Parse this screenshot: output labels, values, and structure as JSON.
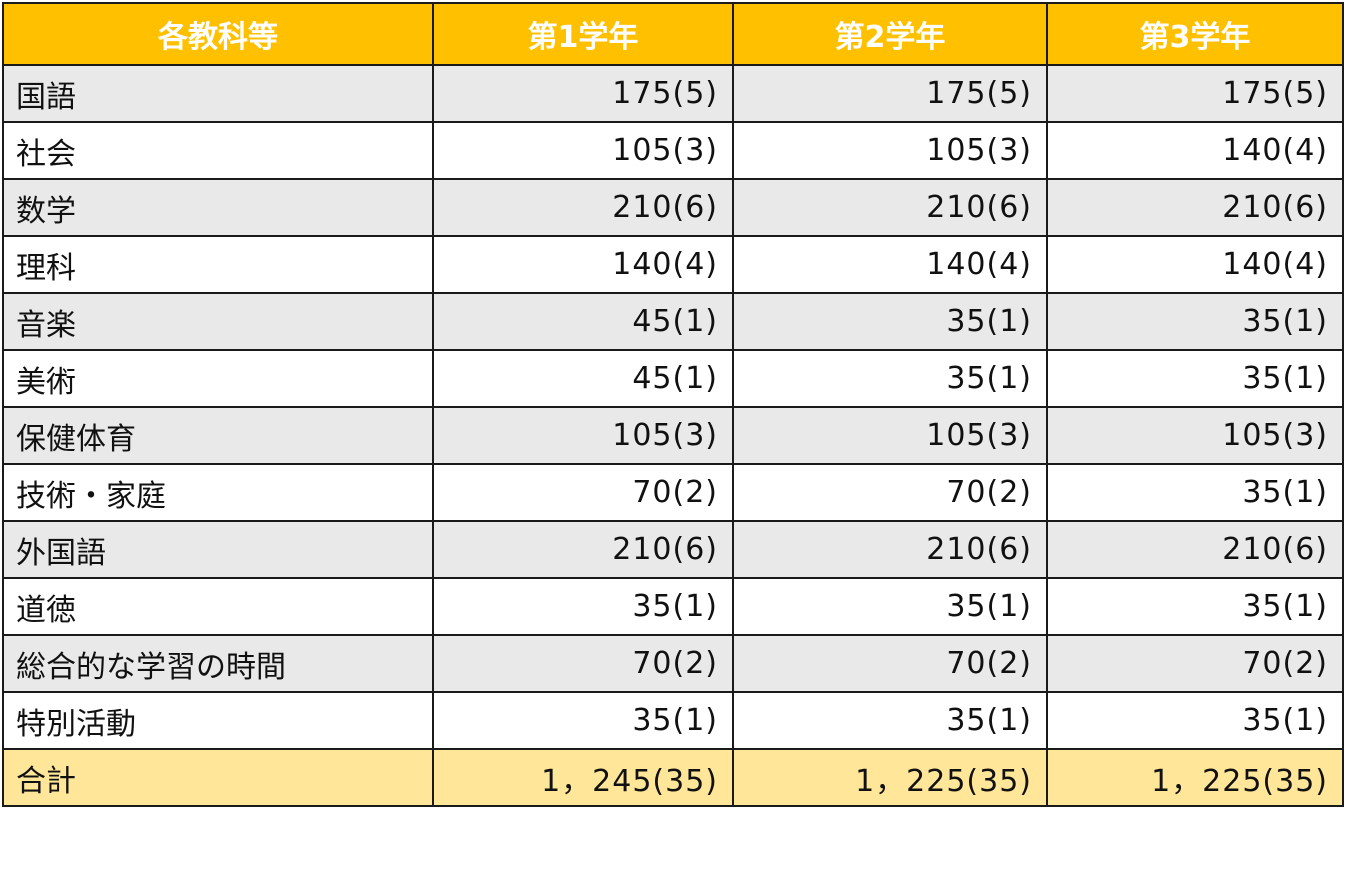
{
  "headers": [
    "各教科等",
    "第1学年",
    "第2学年",
    "第3学年"
  ],
  "rows": [
    {
      "subject": "国語",
      "values": [
        "175(5)",
        "175(5)",
        "175(5)"
      ]
    },
    {
      "subject": "社会",
      "values": [
        "105(3)",
        "105(3)",
        "140(4)"
      ]
    },
    {
      "subject": "数学",
      "values": [
        "210(6)",
        "210(6)",
        "210(6)"
      ]
    },
    {
      "subject": "理科",
      "values": [
        "140(4)",
        "140(4)",
        "140(4)"
      ]
    },
    {
      "subject": "音楽",
      "values": [
        "45(1)",
        "35(1)",
        "35(1)"
      ]
    },
    {
      "subject": "美術",
      "values": [
        "45(1)",
        "35(1)",
        "35(1)"
      ]
    },
    {
      "subject": "保健体育",
      "values": [
        "105(3)",
        "105(3)",
        "105(3)"
      ]
    },
    {
      "subject": "技術・家庭",
      "values": [
        "70(2)",
        "70(2)",
        "35(1)"
      ]
    },
    {
      "subject": "外国語",
      "values": [
        "210(6)",
        "210(6)",
        "210(6)"
      ]
    },
    {
      "subject": "道徳",
      "values": [
        "35(1)",
        "35(1)",
        "35(1)"
      ]
    },
    {
      "subject": "総合的な学習の時間",
      "values": [
        "70(2)",
        "70(2)",
        "70(2)"
      ]
    },
    {
      "subject": "特別活動",
      "values": [
        "35(1)",
        "35(1)",
        "35(1)"
      ]
    }
  ],
  "total": {
    "subject": "合計",
    "values": [
      "1，245(35)",
      "1，225(35)",
      "1，225(35)"
    ]
  },
  "colors": {
    "header_bg": "#ffc000",
    "header_text": "#ffffff",
    "shaded_row": "#e9e9e9",
    "plain_row": "#ffffff",
    "total_row": "#ffe699"
  }
}
